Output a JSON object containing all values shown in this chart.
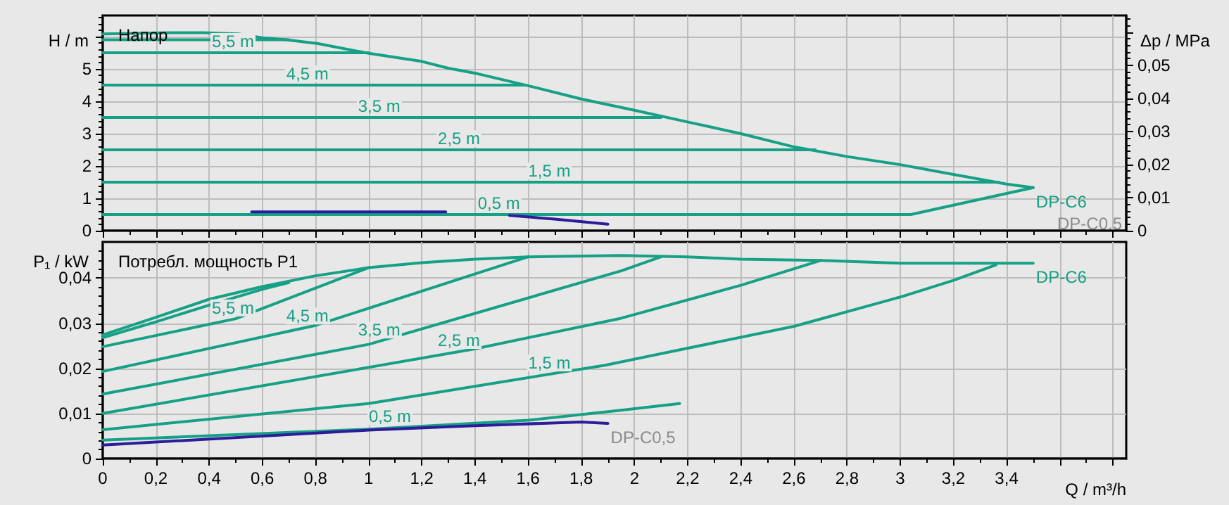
{
  "chart_data": [
    {
      "type": "line",
      "title": "Напор",
      "ylabel": "H / m",
      "y2label": "Δp / MPa",
      "xlim": [
        0,
        3.85
      ],
      "ylim": [
        0,
        6.65
      ],
      "y2lim": [
        0,
        0.065
      ],
      "xticks": [
        0,
        0.2,
        0.4,
        0.6,
        0.8,
        1,
        1.2,
        1.4,
        1.6,
        1.8,
        2,
        2.2,
        2.4,
        2.6,
        2.8,
        3,
        3.2,
        3.4,
        3.6,
        3.8
      ],
      "yticks": [
        0,
        1,
        2,
        3,
        4,
        5,
        {
          "value": 6,
          "label": null
        }
      ],
      "y2ticks": [
        0,
        {
          "value": 0.01,
          "label": "0,01"
        },
        {
          "value": 0.02,
          "label": "0,02"
        },
        {
          "value": 0.03,
          "label": "0,03"
        },
        {
          "value": 0.04,
          "label": "0,04"
        },
        {
          "value": 0.05,
          "label": "0,05"
        },
        {
          "value": 0.06,
          "label": null
        }
      ],
      "tick_labels": "y",
      "grid": true,
      "marker": "none",
      "annotations": [
        {
          "text": "5,5 m",
          "x": 0.49,
          "y": 5.5
        },
        {
          "text": "4,5 m",
          "x": 0.77,
          "y": 4.5
        },
        {
          "text": "3,5 m",
          "x": 1.04,
          "y": 3.5
        },
        {
          "text": "2,5 m",
          "x": 1.34,
          "y": 2.5
        },
        {
          "text": "1,5 m",
          "x": 1.68,
          "y": 1.5
        },
        {
          "text": "0,5 m",
          "x": 1.49,
          "y": 0.5
        },
        {
          "text": "DP-C6",
          "x": 3.5,
          "y": 1.33
        },
        "DP-C0,5"
      ],
      "series": [
        {
          "color": "#16a085",
          "x": [
            0,
            0.26,
            0.38,
            0.51,
            0.6,
            0.69,
            0.81,
            1.0,
            1.2,
            1.3,
            1.41,
            1.6,
            1.8,
            2.0,
            2.2,
            2.4,
            2.6,
            2.8,
            3.0,
            3.2,
            3.4,
            3.5
          ],
          "values": [
            6.08,
            6.12,
            6.12,
            6.08,
            5.96,
            5.9,
            5.78,
            5.48,
            5.23,
            5.02,
            4.85,
            4.48,
            4.07,
            3.72,
            3.36,
            3.0,
            2.59,
            2.29,
            2.04,
            1.74,
            1.44,
            1.33
          ]
        },
        {
          "color": "#16a085",
          "x": [
            0,
            0.7
          ],
          "values": [
            5.9,
            5.9
          ]
        },
        {
          "color": "#16a085",
          "x": [
            0,
            1.0
          ],
          "values": [
            5.5,
            5.5
          ]
        },
        {
          "color": "#16a085",
          "x": [
            0,
            1.59
          ],
          "values": [
            4.5,
            4.5
          ]
        },
        {
          "color": "#16a085",
          "x": [
            0,
            2.1
          ],
          "values": [
            3.5,
            3.5
          ]
        },
        {
          "color": "#16a085",
          "x": [
            0,
            2.68
          ],
          "values": [
            2.5,
            2.5
          ]
        },
        {
          "color": "#16a085",
          "x": [
            0,
            3.37
          ],
          "values": [
            1.5,
            1.5
          ]
        },
        {
          "color": "#16a085",
          "x": [
            0,
            3.04,
            3.5
          ],
          "values": [
            0.5,
            0.5,
            1.33
          ]
        },
        {
          "color": "#2c1c9c",
          "x": [
            0.56,
            1.29,
            1.4,
            1.53,
            1.7,
            1.9
          ],
          "values": [
            0.58,
            0.58,
            null,
            0.47,
            0.36,
            0.2
          ]
        }
      ]
    },
    {
      "type": "line",
      "title": "Потребл. мощность P1",
      "xlabel": "Q / m³/h",
      "ylabel": "P₁ / kW",
      "xlim": [
        0,
        3.85
      ],
      "ylim": [
        0,
        0.048
      ],
      "xticks": [
        0,
        {
          "value": 0.2,
          "label": "0,2"
        },
        {
          "value": 0.4,
          "label": "0,4"
        },
        {
          "value": 0.6,
          "label": "0,6"
        },
        {
          "value": 0.8,
          "label": "0,8"
        },
        1,
        {
          "value": 1.2,
          "label": "1,2"
        },
        {
          "value": 1.4,
          "label": "1,4"
        },
        {
          "value": 1.6,
          "label": "1,6"
        },
        {
          "value": 1.8,
          "label": "1,8"
        },
        2,
        {
          "value": 2.2,
          "label": "2,2"
        },
        {
          "value": 2.4,
          "label": "2,4"
        },
        {
          "value": 2.6,
          "label": "2,6"
        },
        {
          "value": 2.8,
          "label": "2,8"
        },
        3,
        {
          "value": 3.2,
          "label": "3,2"
        },
        {
          "value": 3.4,
          "label": "3,4"
        },
        {
          "value": 3.6,
          "label": null
        },
        {
          "value": 3.8,
          "label": null
        }
      ],
      "yticks": [
        0,
        {
          "value": 0.01,
          "label": "0,01"
        },
        {
          "value": 0.02,
          "label": "0,02"
        },
        {
          "value": 0.03,
          "label": "0,03"
        },
        {
          "value": 0.04,
          "label": "0,04"
        }
      ],
      "grid": true,
      "marker": "none",
      "annotations": [
        {
          "text": "5,5 m",
          "x": 0.49,
          "y": 0.0309
        },
        {
          "text": "4,5 m",
          "x": 0.77,
          "y": 0.0291
        },
        {
          "text": "3,5 m",
          "x": 1.04,
          "y": 0.026
        },
        {
          "text": "2,5 m",
          "x": 1.34,
          "y": 0.0237
        },
        {
          "text": "1,5 m",
          "x": 1.68,
          "y": 0.0187
        },
        {
          "text": "0,5 m",
          "x": 1.08,
          "y": 0.0068
        },
        {
          "text": "DP-C6",
          "x": 3.5,
          "y": 0.0433
        },
        {
          "text": "DP-C0,5",
          "x": 1.9,
          "y": 0.0078
        }
      ],
      "series": [
        {
          "color": "#16a085",
          "x": [
            0,
            0.2,
            0.4,
            0.6,
            0.8,
            1.0,
            1.2,
            1.4,
            1.6,
            1.95,
            2.2,
            2.4,
            2.7,
            3.0,
            3.5
          ],
          "values": [
            0.0274,
            0.0313,
            0.0353,
            0.0381,
            0.0405,
            0.0423,
            0.0434,
            0.0442,
            0.0447,
            0.045,
            0.0447,
            0.0442,
            0.0439,
            0.0433,
            0.0433
          ]
        },
        {
          "color": "#16a085",
          "x": [
            0,
            0.2,
            0.4,
            0.6,
            0.7
          ],
          "values": [
            0.0268,
            0.0303,
            0.034,
            0.0375,
            0.039
          ]
        },
        {
          "color": "#16a085",
          "x": [
            0,
            0.5,
            1.0
          ],
          "values": [
            0.0248,
            0.031,
            0.0423
          ]
        },
        {
          "color": "#16a085",
          "x": [
            0,
            0.8,
            1.6
          ],
          "values": [
            0.0193,
            0.0295,
            0.0447
          ]
        },
        {
          "color": "#16a085",
          "x": [
            0,
            1.0,
            1.95,
            2.1
          ],
          "values": [
            0.0143,
            0.0253,
            0.0416,
            0.0447
          ]
        },
        {
          "color": "#16a085",
          "x": [
            0,
            1.4,
            1.95,
            2.4,
            2.7
          ],
          "values": [
            0.01,
            0.0243,
            0.0311,
            0.0384,
            0.0439
          ]
        },
        {
          "color": "#16a085",
          "x": [
            0,
            1.0,
            1.89,
            2.6,
            3.0,
            3.2,
            3.36
          ],
          "values": [
            0.0064,
            0.0122,
            0.0207,
            0.0293,
            0.0358,
            0.0395,
            0.0429
          ]
        },
        {
          "color": "#16a085",
          "x": [
            0,
            1.0,
            1.6,
            1.95,
            2.17
          ],
          "values": [
            0.0041,
            0.0065,
            0.0085,
            0.0107,
            0.0122
          ]
        },
        {
          "color": "#2c1c9c",
          "x": [
            0,
            1.0,
            1.4,
            1.8,
            1.9
          ],
          "values": [
            0.003,
            0.0063,
            0.0073,
            0.0081,
            0.0078
          ]
        }
      ]
    }
  ]
}
